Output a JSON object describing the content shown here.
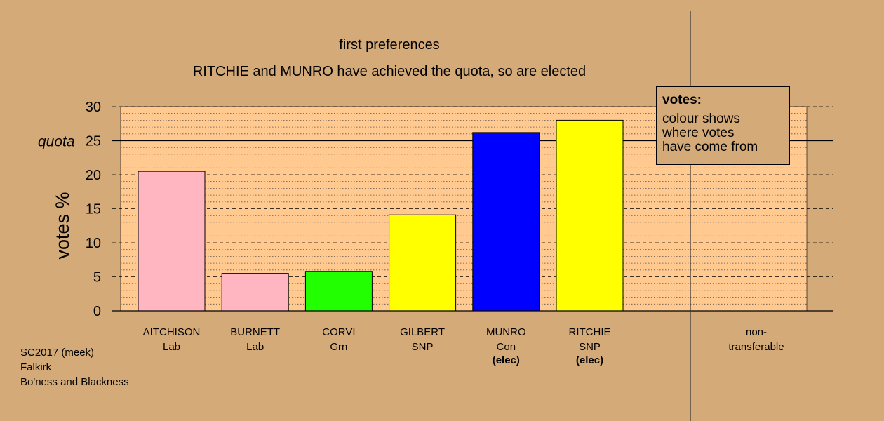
{
  "chart_data": {
    "type": "bar",
    "title": "first preferences",
    "subtitle": "RITCHIE and MUNRO have achieved the quota, so are elected",
    "ylabel": "votes %",
    "ylim": [
      0,
      30
    ],
    "yticks": [
      "0",
      "5",
      "10",
      "15",
      "20",
      "25",
      "30"
    ],
    "quota": {
      "value": 25,
      "label": "quota"
    },
    "grid": true,
    "bars": [
      {
        "name": "AITCHISON",
        "party": "Lab",
        "status": "",
        "value": 20.5,
        "color": "#ffb6c1"
      },
      {
        "name": "BURNETT",
        "party": "Lab",
        "status": "",
        "value": 5.5,
        "color": "#ffb6c1"
      },
      {
        "name": "CORVI",
        "party": "Grn",
        "status": "",
        "value": 5.8,
        "color": "#22ff00"
      },
      {
        "name": "GILBERT",
        "party": "SNP",
        "status": "",
        "value": 14.1,
        "color": "#ffff00"
      },
      {
        "name": "MUNRO",
        "party": "Con",
        "status": "(elec)",
        "value": 26.2,
        "color": "#0000ff"
      },
      {
        "name": "RITCHIE",
        "party": "SNP",
        "status": "(elec)",
        "value": 28.0,
        "color": "#ffff00"
      }
    ],
    "nontransferable": {
      "line1": "non-",
      "line2": "transferable",
      "value": 0
    }
  },
  "legend": {
    "heading": "votes:",
    "body": "colour shows\nwhere votes\nhave come from"
  },
  "footer": {
    "line1": "SC2017 (meek)",
    "line2": "Falkirk",
    "line3": "Bo'ness and Blackness"
  },
  "colors": {
    "background": "#d4aa78",
    "plot_area": "#ffc98f"
  }
}
